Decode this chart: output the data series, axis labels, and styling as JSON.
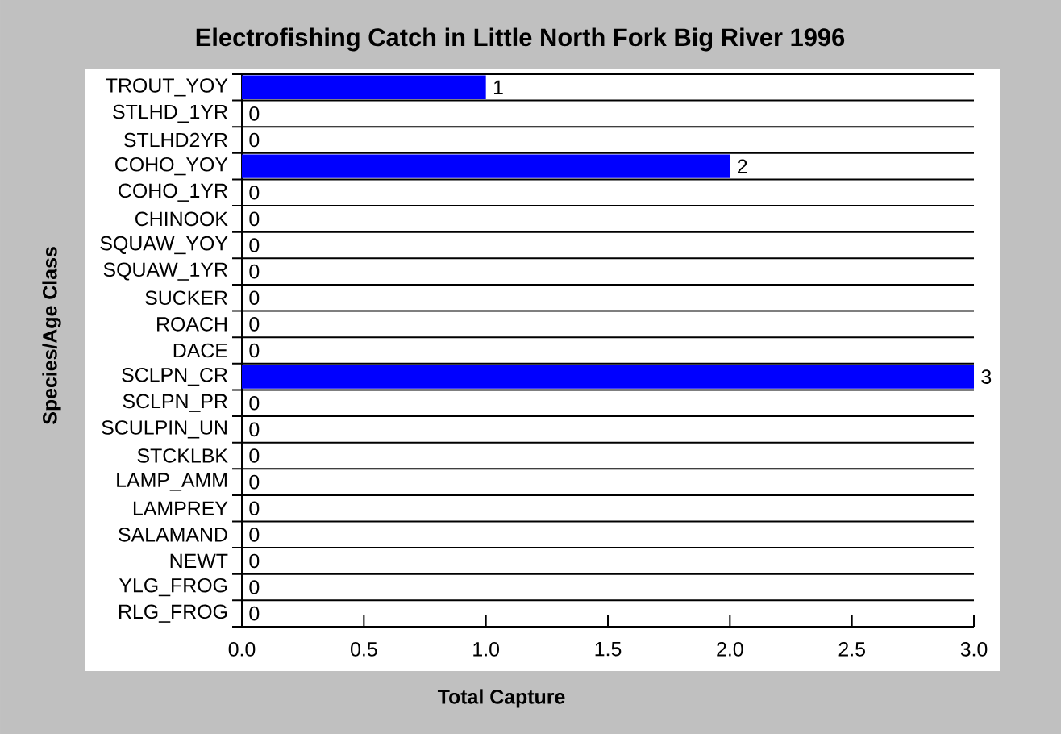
{
  "chart_data": {
    "type": "bar",
    "title": "Electrofishing Catch in Little North Fork Big River 1996",
    "xlabel": "Total Capture",
    "ylabel": "Species/Age Class",
    "orientation": "horizontal",
    "categories": [
      "TROUT_YOY",
      "STLHD_1YR",
      "STLHD2YR",
      "COHO_YOY",
      "COHO_1YR",
      "CHINOOK",
      "SQUAW_YOY",
      "SQUAW_1YR",
      "SUCKER",
      "ROACH",
      "DACE",
      "SCLPN_CR",
      "SCLPN_PR",
      "SCULPIN_UN",
      "STCKLBK",
      "LAMP_AMM",
      "LAMPREY",
      "SALAMAND",
      "NEWT",
      "YLG_FROG",
      "RLG_FROG"
    ],
    "values": [
      1,
      0,
      0,
      2,
      0,
      0,
      0,
      0,
      0,
      0,
      0,
      3,
      0,
      0,
      0,
      0,
      0,
      0,
      0,
      0,
      0
    ],
    "color": "#0000ff",
    "xlim": [
      0,
      3
    ],
    "xticks": [
      {
        "value": 0,
        "label": "0.0"
      },
      0.5,
      {
        "value": 1,
        "label": "1.0"
      },
      1.5,
      {
        "value": 2,
        "label": "2.0"
      },
      2.5,
      {
        "value": 3,
        "label": "3.0"
      }
    ],
    "grid": "y",
    "data_labels": true
  }
}
